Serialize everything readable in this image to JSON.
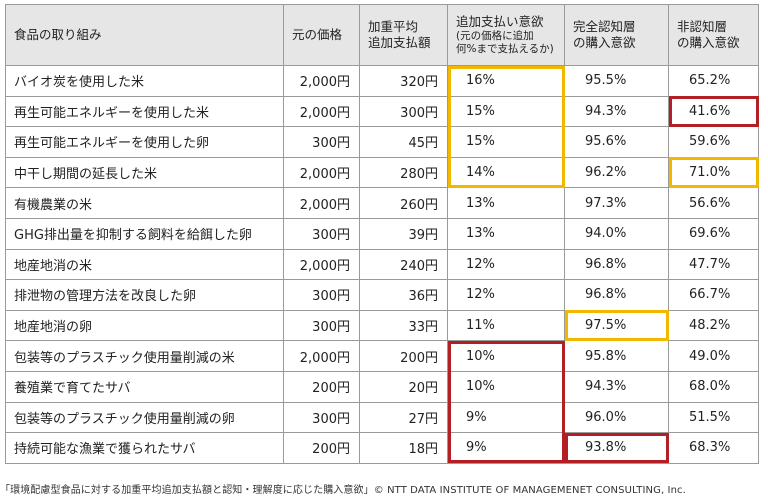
{
  "table": {
    "headers": {
      "name": "食品の取り組み",
      "price": "元の価格",
      "add_line1": "加重平均",
      "add_line2": "追加支払額",
      "wtp_line1": "追加支払い意欲",
      "wtp_sub1": "(元の価格に追加",
      "wtp_sub2": "何%まで支払えるか)",
      "aware_line1": "完全認知層",
      "aware_line2": "の購入意欲",
      "unaware_line1": "非認知層",
      "unaware_line2": "の購入意欲"
    },
    "rows": [
      {
        "name": "バイオ炭を使用した米",
        "price": "2,000円",
        "add": "320円",
        "wtp": "16%",
        "aware": "95.5%",
        "unaware": "65.2%"
      },
      {
        "name": "再生可能エネルギーを使用した米",
        "price": "2,000円",
        "add": "300円",
        "wtp": "15%",
        "aware": "94.3%",
        "unaware": "41.6%"
      },
      {
        "name": "再生可能エネルギーを使用した卵",
        "price": "300円",
        "add": "45円",
        "wtp": "15%",
        "aware": "95.6%",
        "unaware": "59.6%"
      },
      {
        "name": "中干し期間の延長した米",
        "price": "2,000円",
        "add": "280円",
        "wtp": "14%",
        "aware": "96.2%",
        "unaware": "71.0%"
      },
      {
        "name": "有機農業の米",
        "price": "2,000円",
        "add": "260円",
        "wtp": "13%",
        "aware": "97.3%",
        "unaware": "56.6%"
      },
      {
        "name": "GHG排出量を抑制する飼料を給餌した卵",
        "price": "300円",
        "add": "39円",
        "wtp": "13%",
        "aware": "94.0%",
        "unaware": "69.6%"
      },
      {
        "name": "地産地消の米",
        "price": "2,000円",
        "add": "240円",
        "wtp": "12%",
        "aware": "96.8%",
        "unaware": "47.7%"
      },
      {
        "name": "排泄物の管理方法を改良した卵",
        "price": "300円",
        "add": "36円",
        "wtp": "12%",
        "aware": "96.8%",
        "unaware": "66.7%"
      },
      {
        "name": "地産地消の卵",
        "price": "300円",
        "add": "33円",
        "wtp": "11%",
        "aware": "97.5%",
        "unaware": "48.2%"
      },
      {
        "name": "包装等のプラスチック使用量削減の米",
        "price": "2,000円",
        "add": "200円",
        "wtp": "10%",
        "aware": "95.8%",
        "unaware": "49.0%"
      },
      {
        "name": "養殖業で育てたサバ",
        "price": "200円",
        "add": "20円",
        "wtp": "10%",
        "aware": "94.3%",
        "unaware": "68.0%"
      },
      {
        "name": "包装等のプラスチック使用量削減の卵",
        "price": "300円",
        "add": "27円",
        "wtp": "9%",
        "aware": "96.0%",
        "unaware": "51.5%"
      },
      {
        "name": "持続可能な漁業で獲られたサバ",
        "price": "200円",
        "add": "18円",
        "wtp": "9%",
        "aware": "93.8%",
        "unaware": "68.3%"
      }
    ]
  },
  "highlights": [
    {
      "column": "wtp",
      "rows": [
        0,
        3
      ],
      "color": "#f2b800"
    },
    {
      "column": "unaware",
      "rows": [
        1,
        1
      ],
      "color": "#b21f24"
    },
    {
      "column": "unaware",
      "rows": [
        3,
        3
      ],
      "color": "#f2b800"
    },
    {
      "column": "aware",
      "rows": [
        8,
        8
      ],
      "color": "#f2b800"
    },
    {
      "column": "wtp",
      "rows": [
        9,
        12
      ],
      "color": "#b21f24"
    },
    {
      "column": "aware",
      "rows": [
        12,
        12
      ],
      "color": "#b21f24"
    }
  ],
  "caption": "「環境配慮型食品に対する加重平均追加支払額と認知・理解度に応じた購入意欲」© NTT DATA INSTITUTE OF MANAGEMENET CONSULTING, Inc."
}
